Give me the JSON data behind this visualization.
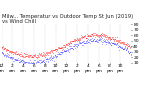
{
  "title": "Milw... Temperatur vs Outdoor Temp St Jun (2019)\nvs Wind Chill",
  "dot_color_temp": "#ff0000",
  "dot_color_wind": "#0000ff",
  "background_color": "#ffffff",
  "ylim": [
    10,
    80
  ],
  "yticks": [
    10,
    20,
    30,
    40,
    50,
    60,
    70,
    80
  ],
  "num_points": 1440,
  "temp_min": 22,
  "temp_max": 60,
  "wind_min": 14,
  "wind_max": 55,
  "grid_color": "#aaaaaa",
  "title_fontsize": 3.8,
  "tick_fontsize": 3.2,
  "dot_size": 0.15
}
